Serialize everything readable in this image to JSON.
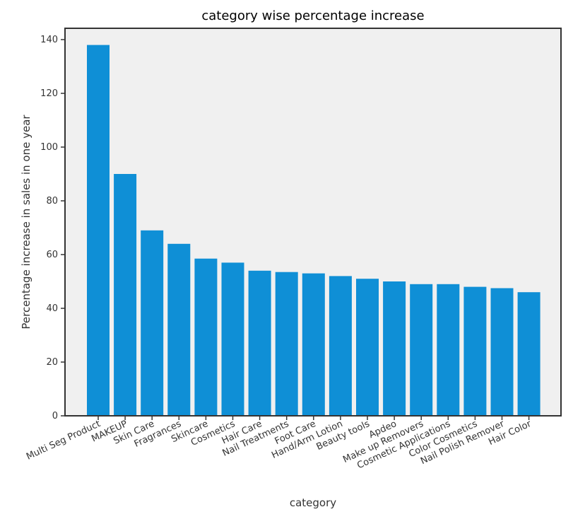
{
  "colors": {
    "bar": "#0f8fd6",
    "plot_background": "#f0f0f0",
    "frame": "#333333",
    "text": "#333333"
  },
  "chart_data": {
    "type": "bar",
    "title": "category wise percentage increase",
    "xlabel": "category",
    "ylabel": "Percentage increase in sales in one year",
    "ylim": [
      0,
      145
    ],
    "yticks": [
      0,
      20,
      40,
      60,
      80,
      100,
      120,
      140
    ],
    "grid": false,
    "categories": [
      "Multi Seg Product",
      "MAKEUP",
      "Skin Care",
      "Fragrances",
      "Skincare",
      "Cosmetics",
      "Hair Care",
      "Nail Treatments",
      "Foot Care",
      "Hand/Arm Lotion",
      "Beauty tools",
      "Apdeo",
      "Make up Removers",
      "Cosmetic Applications",
      "Color Cosmetics",
      "Nail Polish Remover",
      "Hair Color"
    ],
    "values": [
      138,
      90,
      69,
      64,
      58.5,
      57,
      54,
      53.5,
      53,
      52,
      51,
      50,
      49,
      49,
      48,
      47.5,
      46
    ]
  }
}
